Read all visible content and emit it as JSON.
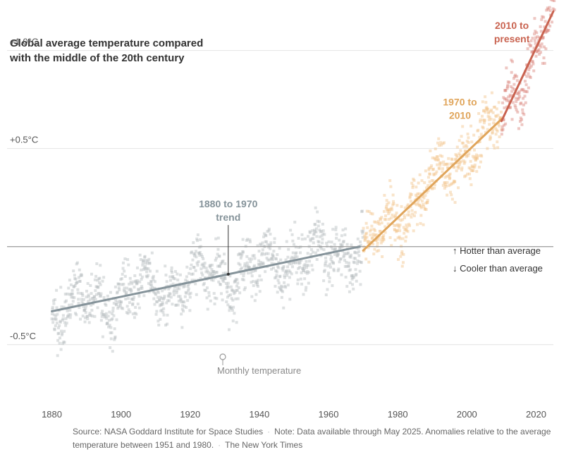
{
  "chart_data": {
    "type": "scatter",
    "title_lines": [
      "Global average temperature compared",
      "with the middle of the 20th century"
    ],
    "xlabel": "",
    "ylabel": "",
    "xlim": [
      1875,
      2025
    ],
    "ylim": [
      -0.9,
      1.2
    ],
    "x_ticks": [
      1880,
      1900,
      1920,
      1940,
      1960,
      1980,
      2000,
      2020
    ],
    "y_ticks": [
      {
        "value": 1.0,
        "label": "+1.0°C"
      },
      {
        "value": 0.5,
        "label": "+0.5°C"
      },
      {
        "value": -0.5,
        "label": "-0.5°C"
      }
    ],
    "grid": true,
    "point_colors": {
      "1880-1969": "#b5bdbf",
      "1970-2009": "#f2c38a",
      "2010-2025": "#d9837a"
    },
    "trends": [
      {
        "name_lines": [
          "1880 to 1970",
          "trend"
        ],
        "color": "#85939a",
        "x": [
          1880,
          1969
        ],
        "y": [
          -0.33,
          0.0
        ],
        "label_anchor": [
          1931,
          0.2
        ]
      },
      {
        "name_lines": [
          "1970 to",
          "2010"
        ],
        "color": "#e0a55b",
        "x": [
          1970,
          2010
        ],
        "y": [
          -0.02,
          0.65
        ],
        "label_anchor": [
          1998,
          0.72
        ]
      },
      {
        "name_lines": [
          "2010 to",
          "present"
        ],
        "color": "#c96350",
        "x": [
          2010,
          2025
        ],
        "y": [
          0.64,
          1.2
        ],
        "label_anchor": [
          2013,
          1.11
        ]
      }
    ],
    "annotations": {
      "hotter": "↑ Hotter than average",
      "cooler": "↓ Cooler than average",
      "monthly": "Monthly temperature"
    }
  },
  "source": {
    "source_text": "Source: NASA Goddard Institute for Space Studies",
    "note_text": "Note: Data available through May 2025. Anomalies relative to the average temperature between 1951 and 1980.",
    "publisher": "The New York Times"
  }
}
